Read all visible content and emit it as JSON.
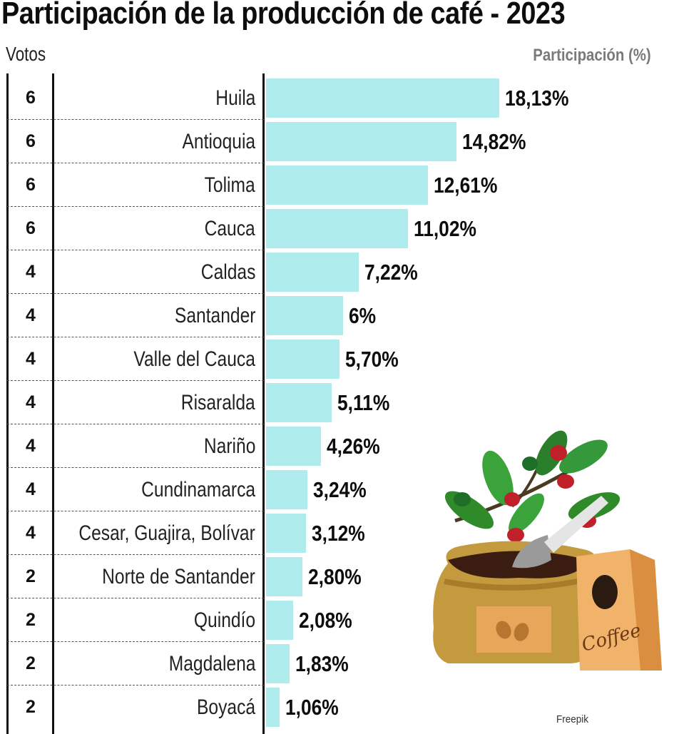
{
  "title": "Participación de la producción de café - 2023",
  "headers": {
    "votes": "Votos",
    "participation": "Participación (%)"
  },
  "credit": "Freepik",
  "illustration": {
    "icon": "coffee-bag-illustration-icon",
    "bag_text": "Coffee"
  },
  "colors": {
    "bar": "#aeeced",
    "text": "#0d0d0d",
    "header_gray": "#7a7a7a"
  },
  "rows": [
    {
      "votes": "6",
      "label": "Huila",
      "value": 18.13,
      "value_label": "18,13%"
    },
    {
      "votes": "6",
      "label": "Antioquia",
      "value": 14.82,
      "value_label": "14,82%"
    },
    {
      "votes": "6",
      "label": "Tolima",
      "value": 12.61,
      "value_label": "12,61%"
    },
    {
      "votes": "6",
      "label": "Cauca",
      "value": 11.02,
      "value_label": "11,02%"
    },
    {
      "votes": "4",
      "label": "Caldas",
      "value": 7.22,
      "value_label": "7,22%"
    },
    {
      "votes": "4",
      "label": "Santander",
      "value": 6.0,
      "value_label": "6%"
    },
    {
      "votes": "4",
      "label": "Valle del Cauca",
      "value": 5.7,
      "value_label": "5,70%"
    },
    {
      "votes": "4",
      "label": "Risaralda",
      "value": 5.11,
      "value_label": "5,11%"
    },
    {
      "votes": "4",
      "label": "Nariño",
      "value": 4.26,
      "value_label": "4,26%"
    },
    {
      "votes": "4",
      "label": "Cundinamarca",
      "value": 3.24,
      "value_label": "3,24%"
    },
    {
      "votes": "4",
      "label": "Cesar, Guajira, Bolívar",
      "value": 3.12,
      "value_label": "3,12%"
    },
    {
      "votes": "2",
      "label": "Norte de Santander",
      "value": 2.8,
      "value_label": "2,80%"
    },
    {
      "votes": "2",
      "label": "Quindío",
      "value": 2.08,
      "value_label": "2,08%"
    },
    {
      "votes": "2",
      "label": "Magdalena",
      "value": 1.83,
      "value_label": "1,83%"
    },
    {
      "votes": "2",
      "label": "Boyacá",
      "value": 1.06,
      "value_label": "1,06%"
    }
  ],
  "chart_data": {
    "type": "bar",
    "orientation": "horizontal",
    "title": "Participación de la producción de café - 2023",
    "xlabel": "Participación (%)",
    "ylabel": "",
    "categories": [
      "Huila",
      "Antioquia",
      "Tolima",
      "Cauca",
      "Caldas",
      "Santander",
      "Valle del Cauca",
      "Risaralda",
      "Nariño",
      "Cundinamarca",
      "Cesar, Guajira, Bolívar",
      "Norte de Santander",
      "Quindío",
      "Magdalena",
      "Boyacá"
    ],
    "values": [
      18.13,
      14.82,
      12.61,
      11.02,
      7.22,
      6.0,
      5.7,
      5.11,
      4.26,
      3.24,
      3.12,
      2.8,
      2.08,
      1.83,
      1.06
    ],
    "value_labels": [
      "18,13%",
      "14,82%",
      "12,61%",
      "11,02%",
      "7,22%",
      "6%",
      "5,70%",
      "5,11%",
      "4,26%",
      "3,24%",
      "3,12%",
      "2,80%",
      "2,08%",
      "1,83%",
      "1,06%"
    ],
    "extra_columns": {
      "Votos": [
        6,
        6,
        6,
        6,
        4,
        4,
        4,
        4,
        4,
        4,
        4,
        2,
        2,
        2,
        2
      ]
    },
    "grid": false,
    "legend": null,
    "xlim": [
      0,
      20
    ]
  }
}
